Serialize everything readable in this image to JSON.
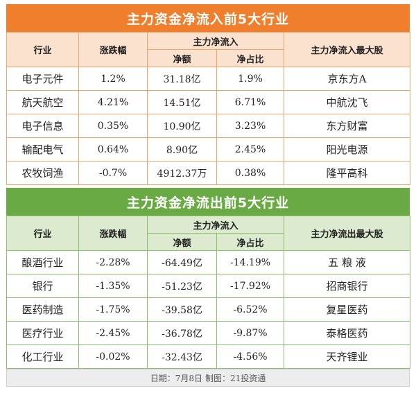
{
  "inflow": {
    "title": "主力资金净流入前5大行业",
    "headers": {
      "industry": "行业",
      "change": "涨跌幅",
      "group": "主力净流入",
      "net": "净额",
      "ratio": "净占比",
      "top_stock": "主力净流入最大股"
    },
    "rows": [
      {
        "industry": "电子元件",
        "change": "1.2%",
        "net": "31.18亿",
        "ratio": "1.9%",
        "stock": "京东方A"
      },
      {
        "industry": "航天航空",
        "change": "4.21%",
        "net": "14.51亿",
        "ratio": "6.71%",
        "stock": "中航沈飞"
      },
      {
        "industry": "电子信息",
        "change": "0.35%",
        "net": "10.90亿",
        "ratio": "3.23%",
        "stock": "东方财富"
      },
      {
        "industry": "输配电气",
        "change": "0.64%",
        "net": "8.90亿",
        "ratio": "2.45%",
        "stock": "阳光电源"
      },
      {
        "industry": "农牧饲渔",
        "change": "-0.7%",
        "net": "4912.37万",
        "ratio": "0.38%",
        "stock": "隆平高科"
      }
    ]
  },
  "outflow": {
    "title": "主力资金净流出前5大行业",
    "headers": {
      "industry": "行业",
      "change": "涨跌幅",
      "group": "主力净流入",
      "net": "净额",
      "ratio": "净占比",
      "top_stock": "主力净流出最大股"
    },
    "rows": [
      {
        "industry": "酿酒行业",
        "change": "-2.28%",
        "net": "-64.49亿",
        "ratio": "-14.19%",
        "stock": "五 粮 液"
      },
      {
        "industry": "银行",
        "change": "-1.35%",
        "net": "-51.23亿",
        "ratio": "-17.92%",
        "stock": "招商银行"
      },
      {
        "industry": "医药制造",
        "change": "-1.75%",
        "net": "-39.58亿",
        "ratio": "-6.52%",
        "stock": "复星医药"
      },
      {
        "industry": "医疗行业",
        "change": "-2.45%",
        "net": "-36.78亿",
        "ratio": "-9.87%",
        "stock": "泰格医药"
      },
      {
        "industry": "化工行业",
        "change": "-0.02%",
        "net": "-32.43亿",
        "ratio": "-4.56%",
        "stock": "天齐锂业"
      }
    ]
  },
  "footer": {
    "date": "日期：7月8日",
    "maker": "制图：21投资通"
  },
  "colors": {
    "inflow_accent": "#ef7f2d",
    "outflow_accent": "#6aaa45"
  }
}
